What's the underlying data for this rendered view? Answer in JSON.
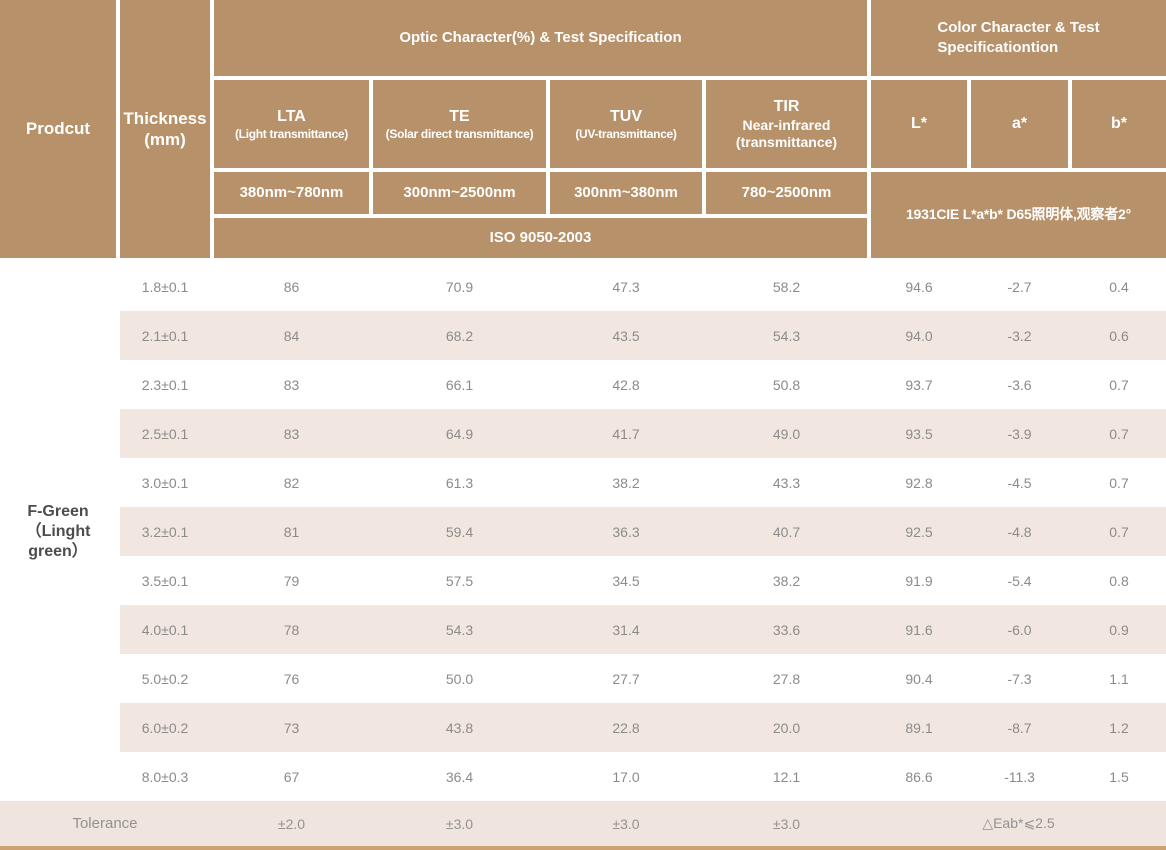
{
  "header": {
    "product": "Prodcut",
    "thickness": {
      "line1": "Thickness",
      "line2": "(mm)"
    },
    "optic_group": "Optic Character(%) & Test Specification",
    "color_group_line1": "Color Character & Test",
    "color_group_line2": "Specificationtion",
    "optic_columns": [
      {
        "name": "LTA",
        "sub": "(Light transmittance)",
        "range": "380nm~780nm"
      },
      {
        "name": "TE",
        "sub": "(Solar direct transmittance)",
        "range": "300nm~2500nm"
      },
      {
        "name": "TUV",
        "sub": "(UV-transmittance)",
        "range": "300nm~380nm"
      },
      {
        "name": "TIR",
        "sub": "Near-infrared",
        "sub2": "(transmittance)",
        "range": "780~2500nm"
      }
    ],
    "color_columns": [
      {
        "name": "L*"
      },
      {
        "name": "a*"
      },
      {
        "name": "b*"
      }
    ],
    "optic_standard": "ISO 9050-2003",
    "color_standard": "1931CIE L*a*b*  D65照明体,观察者2°"
  },
  "product": {
    "lines": [
      "F-Green",
      "（Linght",
      "green）"
    ]
  },
  "rows": [
    {
      "thickness": "1.8±0.1",
      "lta": "86",
      "te": "70.9",
      "tuv": "47.3",
      "tir": "58.2",
      "l": "94.6",
      "a": "-2.7",
      "b": "0.4"
    },
    {
      "thickness": "2.1±0.1",
      "lta": "84",
      "te": "68.2",
      "tuv": "43.5",
      "tir": "54.3",
      "l": "94.0",
      "a": "-3.2",
      "b": "0.6"
    },
    {
      "thickness": "2.3±0.1",
      "lta": "83",
      "te": "66.1",
      "tuv": "42.8",
      "tir": "50.8",
      "l": "93.7",
      "a": "-3.6",
      "b": "0.7"
    },
    {
      "thickness": "2.5±0.1",
      "lta": "83",
      "te": "64.9",
      "tuv": "41.7",
      "tir": "49.0",
      "l": "93.5",
      "a": "-3.9",
      "b": "0.7"
    },
    {
      "thickness": "3.0±0.1",
      "lta": "82",
      "te": "61.3",
      "tuv": "38.2",
      "tir": "43.3",
      "l": "92.8",
      "a": "-4.5",
      "b": "0.7"
    },
    {
      "thickness": "3.2±0.1",
      "lta": "81",
      "te": "59.4",
      "tuv": "36.3",
      "tir": "40.7",
      "l": "92.5",
      "a": "-4.8",
      "b": "0.7"
    },
    {
      "thickness": "3.5±0.1",
      "lta": "79",
      "te": "57.5",
      "tuv": "34.5",
      "tir": "38.2",
      "l": "91.9",
      "a": "-5.4",
      "b": "0.8"
    },
    {
      "thickness": "4.0±0.1",
      "lta": "78",
      "te": "54.3",
      "tuv": "31.4",
      "tir": "33.6",
      "l": "91.6",
      "a": "-6.0",
      "b": "0.9"
    },
    {
      "thickness": "5.0±0.2",
      "lta": "76",
      "te": "50.0",
      "tuv": "27.7",
      "tir": "27.8",
      "l": "90.4",
      "a": "-7.3",
      "b": "1.1"
    },
    {
      "thickness": "6.0±0.2",
      "lta": "73",
      "te": "43.8",
      "tuv": "22.8",
      "tir": "20.0",
      "l": "89.1",
      "a": "-8.7",
      "b": "1.2"
    },
    {
      "thickness": "8.0±0.3",
      "lta": "67",
      "te": "36.4",
      "tuv": "17.0",
      "tir": "12.1",
      "l": "86.6",
      "a": "-11.3",
      "b": "1.5"
    }
  ],
  "tolerance": {
    "label": "Tolerance",
    "lta": "±2.0",
    "te": "±3.0",
    "tuv": "±3.0",
    "tir": "±3.0",
    "color": "△Eab*⩽2.5"
  },
  "colors": {
    "header_tan": "#b7916a",
    "stripe_beige": "#f2e7e0",
    "bottom_line_tan": "#cda273",
    "body_text_gray": "#8b8b8b",
    "product_text_gray": "#4d4d4d"
  }
}
